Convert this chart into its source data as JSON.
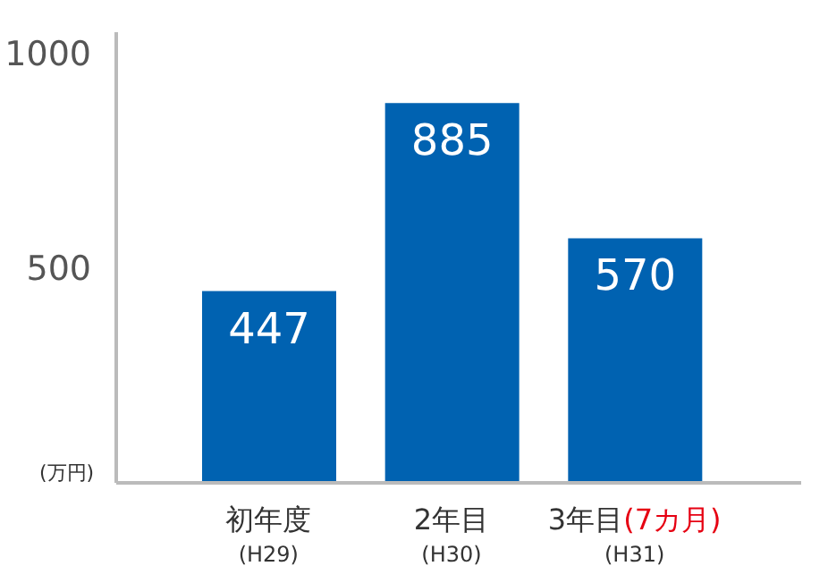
{
  "chart_data": {
    "type": "bar",
    "ylabel": "(万円)",
    "categories": [
      "初年度\n(H29)",
      "2年目\n(H30)",
      "3年目(7カ月)\n(H31)"
    ],
    "values": [
      447,
      885,
      570
    ],
    "color": "#0062b1",
    "ylim": [
      0,
      1050
    ],
    "yticks": [
      500,
      1000
    ],
    "data_labels": true
  }
}
